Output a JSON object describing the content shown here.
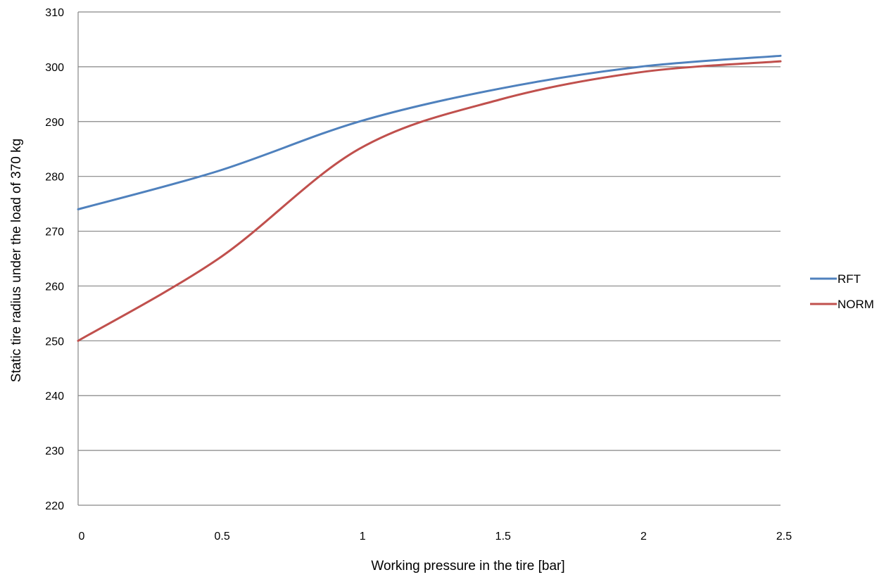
{
  "chart_data": {
    "type": "line",
    "title": "",
    "xlabel": "Working pressure in the tire [bar]",
    "ylabel": "Static tire radius under the load of 370 kg",
    "xlim": [
      0,
      2.5
    ],
    "ylim": [
      220,
      310
    ],
    "x_ticks": [
      0,
      0.5,
      1,
      1.5,
      2,
      2.5
    ],
    "x_tick_labels": [
      "0",
      "0.5",
      "1",
      "1.5",
      "2",
      "2.5"
    ],
    "y_ticks": [
      220,
      230,
      240,
      250,
      260,
      270,
      280,
      290,
      300,
      310
    ],
    "y_tick_labels": [
      "220",
      "230",
      "240",
      "250",
      "260",
      "270",
      "280",
      "290",
      "300",
      "310"
    ],
    "grid": "horizontal",
    "legend_position": "right",
    "x": [
      0,
      0.5,
      1,
      1.5,
      2,
      2.5
    ],
    "series": [
      {
        "name": "RFT",
        "color": "#4F81BD",
        "values": [
          274,
          281,
          290,
          296,
          300,
          302
        ]
      },
      {
        "name": "NORM",
        "color": "#C0504D",
        "values": [
          250,
          265,
          285,
          294,
          299,
          301
        ]
      }
    ]
  }
}
